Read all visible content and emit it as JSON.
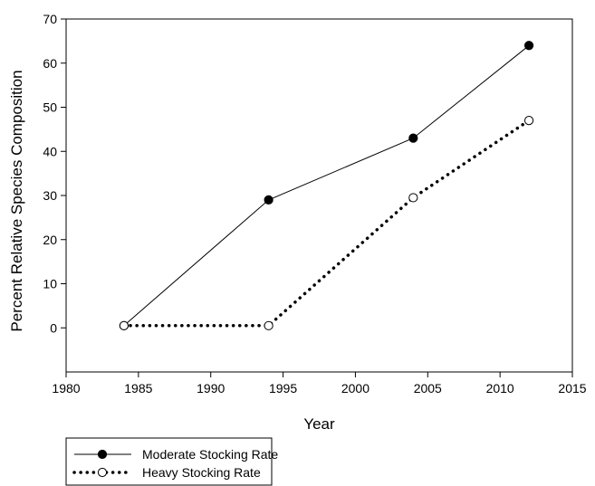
{
  "chart_data": {
    "type": "line",
    "title": "",
    "xlabel": "Year",
    "ylabel": "Percent Relative Species Composition",
    "xlim": [
      1980,
      2015
    ],
    "ylim": [
      -10,
      70
    ],
    "xticks": [
      1980,
      1985,
      1990,
      1995,
      2000,
      2005,
      2010,
      2015
    ],
    "yticks": [
      0,
      10,
      20,
      30,
      40,
      50,
      60,
      70
    ],
    "grid": false,
    "legend_position": "bottom-left, below plot",
    "series": [
      {
        "name": "Moderate Stocking Rate",
        "marker": "filled-circle",
        "line_style": "solid",
        "color": "#000000",
        "x": [
          1984,
          1994,
          2004,
          2012
        ],
        "y": [
          0.5,
          29,
          43,
          64
        ]
      },
      {
        "name": "Heavy Stocking Rate",
        "marker": "open-circle",
        "line_style": "dotted",
        "color": "#000000",
        "x": [
          1984,
          1994,
          2004,
          2012
        ],
        "y": [
          0.5,
          0.5,
          29.5,
          47
        ]
      }
    ]
  }
}
